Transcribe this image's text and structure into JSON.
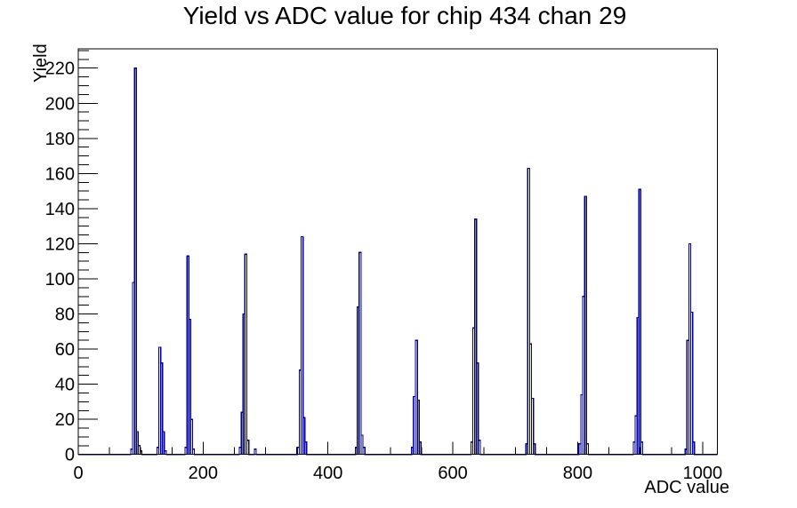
{
  "page": {
    "background": "#ffffff"
  },
  "chart_data": {
    "type": "bar",
    "subtype": "root-histogram-outline",
    "title": "Yield vs ADC value for chip 434 chan 29",
    "xlabel": "ADC value",
    "ylabel": "Yield",
    "x_range": [
      0,
      1024
    ],
    "y_range": [
      0,
      231
    ],
    "x_major_ticks": [
      0,
      200,
      400,
      600,
      800,
      1000
    ],
    "x_minor_tick_step": 50,
    "y_major_ticks": [
      0,
      20,
      40,
      60,
      80,
      100,
      120,
      140,
      160,
      180,
      200,
      220
    ],
    "y_minor_tick_step": 5,
    "grid": false,
    "legend": false,
    "line_color": "#00008b",
    "axis_color": "#000000",
    "bin_width": 3,
    "bins": [
      [
        84,
        3
      ],
      [
        87,
        98
      ],
      [
        90,
        220
      ],
      [
        93,
        13
      ],
      [
        96,
        5
      ],
      [
        99,
        2
      ],
      [
        126,
        4
      ],
      [
        129,
        61
      ],
      [
        132,
        52
      ],
      [
        135,
        13
      ],
      [
        138,
        2
      ],
      [
        171,
        4
      ],
      [
        174,
        113
      ],
      [
        177,
        77
      ],
      [
        180,
        20
      ],
      [
        183,
        3
      ],
      [
        258,
        4
      ],
      [
        261,
        24
      ],
      [
        264,
        80
      ],
      [
        267,
        114
      ],
      [
        270,
        8
      ],
      [
        282,
        3
      ],
      [
        351,
        4
      ],
      [
        354,
        48
      ],
      [
        357,
        124
      ],
      [
        360,
        21
      ],
      [
        363,
        7
      ],
      [
        444,
        4
      ],
      [
        447,
        84
      ],
      [
        450,
        115
      ],
      [
        453,
        11
      ],
      [
        456,
        4
      ],
      [
        534,
        4
      ],
      [
        537,
        33
      ],
      [
        540,
        65
      ],
      [
        543,
        31
      ],
      [
        546,
        7
      ],
      [
        629,
        7
      ],
      [
        632,
        72
      ],
      [
        635,
        134
      ],
      [
        638,
        52
      ],
      [
        641,
        8
      ],
      [
        717,
        6
      ],
      [
        720,
        163
      ],
      [
        723,
        63
      ],
      [
        726,
        32
      ],
      [
        729,
        6
      ],
      [
        802,
        6
      ],
      [
        805,
        34
      ],
      [
        808,
        90
      ],
      [
        811,
        147
      ],
      [
        814,
        6
      ],
      [
        889,
        7
      ],
      [
        892,
        22
      ],
      [
        895,
        78
      ],
      [
        898,
        151
      ],
      [
        901,
        7
      ],
      [
        972,
        3
      ],
      [
        975,
        65
      ],
      [
        978,
        120
      ],
      [
        981,
        81
      ],
      [
        984,
        7
      ]
    ],
    "peak_summary": {
      "adc_positions": [
        90,
        131,
        176,
        267,
        359,
        451,
        540,
        635,
        721,
        812,
        898,
        981
      ],
      "yields": [
        220,
        61,
        113,
        114,
        124,
        115,
        65,
        134,
        163,
        147,
        151,
        120
      ]
    }
  }
}
